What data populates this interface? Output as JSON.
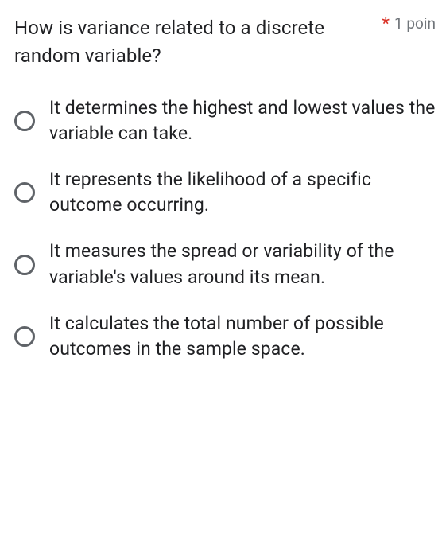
{
  "question": {
    "text": "How is variance related to a discrete random variable?",
    "required_marker": "*",
    "points_label": "1 poin"
  },
  "options": [
    {
      "label": "It determines the highest and lowest values the variable can take."
    },
    {
      "label": "It represents the likelihood of a specific outcome occurring."
    },
    {
      "label": "It measures the spread or variability of the variable's values around its mean."
    },
    {
      "label": "It calculates the total number of possible outcomes in the sample space."
    }
  ],
  "colors": {
    "text": "#202124",
    "required": "#d93025",
    "muted": "#70757a",
    "radio_border": "#5f6368",
    "background": "#ffffff"
  }
}
